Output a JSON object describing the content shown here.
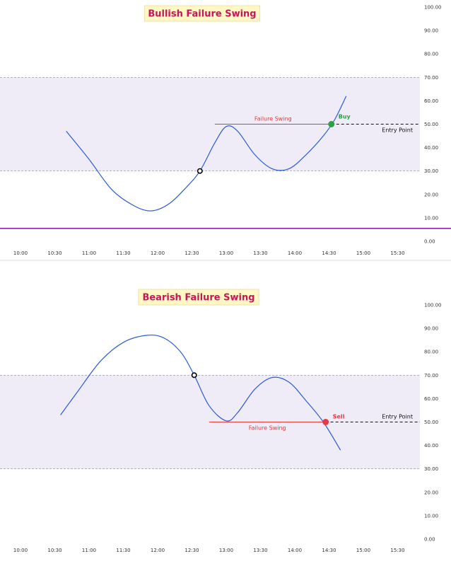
{
  "chart_data": [
    {
      "type": "line",
      "title": "Bullish Failure Swing",
      "ylim": [
        0,
        100
      ],
      "y_ticks": [
        "100.00",
        "90.00",
        "80.00",
        "70.00",
        "60.00",
        "50.00",
        "40.00",
        "30.00",
        "20.00",
        "10.00",
        "0.00"
      ],
      "x_ticks": [
        "10:00",
        "10:30",
        "11:00",
        "11:30",
        "12:00",
        "12:30",
        "13:00",
        "13:30",
        "14:00",
        "14:30",
        "15:00",
        "15:30"
      ],
      "band": [
        30,
        70
      ],
      "series": [
        {
          "values_x": [
            "10:40",
            "11:00",
            "11:20",
            "11:40",
            "11:55",
            "12:10",
            "12:25",
            "12:37",
            "12:50",
            "13:00",
            "13:10",
            "13:25",
            "13:40",
            "13:55",
            "14:10",
            "14:25",
            "14:35",
            "14:45"
          ],
          "values": [
            47,
            35,
            22,
            15,
            13,
            16,
            23,
            30,
            42,
            49,
            47,
            37,
            31,
            31,
            37,
            45,
            52,
            62
          ]
        }
      ],
      "hollow_point": {
        "x": "12:37",
        "y": 30
      },
      "signal_point": {
        "x": "14:32",
        "y": 50,
        "label": "Buy",
        "color": "#2e9e47"
      },
      "level_line": {
        "x_start": "12:50",
        "x_end": "14:32",
        "y": 50,
        "label": "Failure Swing",
        "color": "#e53935"
      },
      "entry_line": {
        "x_start": "14:32",
        "y": 50,
        "label": "Entry Point"
      },
      "bottom_line": {
        "y": 5.5,
        "color": "#8e24aa"
      }
    },
    {
      "type": "line",
      "title": "Bearish Failure Swing",
      "ylim": [
        0,
        100
      ],
      "y_ticks": [
        "100.00",
        "90.00",
        "80.00",
        "70.00",
        "60.00",
        "50.00",
        "40.00",
        "30.00",
        "20.00",
        "10.00",
        "0.00"
      ],
      "x_ticks": [
        "10:00",
        "10:30",
        "11:00",
        "11:30",
        "12:00",
        "12:30",
        "13:00",
        "13:30",
        "14:00",
        "14:30",
        "15:00",
        "15:30"
      ],
      "band": [
        30,
        70
      ],
      "series": [
        {
          "values_x": [
            "10:35",
            "10:50",
            "11:10",
            "11:30",
            "11:50",
            "12:05",
            "12:20",
            "12:32",
            "12:45",
            "13:00",
            "13:10",
            "13:25",
            "13:40",
            "13:55",
            "14:10",
            "14:25",
            "14:40"
          ],
          "values": [
            53,
            63,
            76,
            84,
            87,
            86,
            80,
            70,
            57,
            50.5,
            54,
            64,
            69,
            67,
            59,
            50,
            38
          ]
        }
      ],
      "hollow_point": {
        "x": "12:32",
        "y": 70
      },
      "signal_point": {
        "x": "14:27",
        "y": 50,
        "label": "Sell",
        "color": "#e53945"
      },
      "level_line": {
        "x_start": "12:45",
        "x_end": "14:27",
        "y": 50,
        "label": "Failure Swing",
        "color": "#e53935"
      },
      "entry_line": {
        "x_start": "14:27",
        "y": 50,
        "label": "Entry Point"
      },
      "bottom_line": null
    }
  ]
}
